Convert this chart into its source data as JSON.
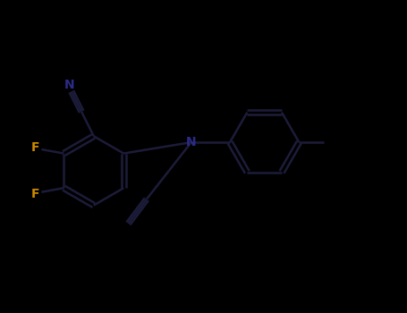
{
  "background_color": "#000000",
  "bond_color": "#1a1a2e",
  "N_color": "#2b2b8a",
  "F_color": "#cc8800",
  "line_width": 1.8,
  "figsize": [
    4.55,
    3.5
  ],
  "dpi": 100,
  "xlim": [
    0,
    10
  ],
  "ylim": [
    0,
    7.7
  ],
  "N_fontsize": 10,
  "F_fontsize": 10,
  "label_color": "#2b2b8a",
  "bond_dark": "#111122",
  "bond_medium": "#1c1c3a"
}
